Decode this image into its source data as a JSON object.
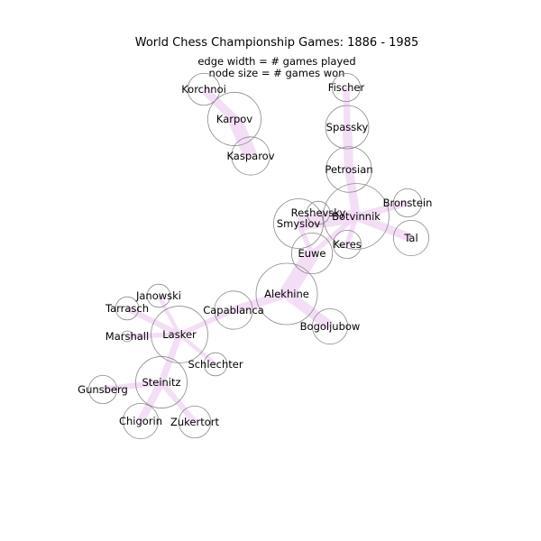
{
  "title": "World Chess Championship Games: 1886 - 1985",
  "subtitle_lines": [
    "edge width = # games played",
    "node size = # games won"
  ],
  "colors": {
    "edge": "#f2d8f5",
    "node_stroke": "#8a8a8a",
    "node_fill": "none",
    "text": "#000000"
  },
  "nodes": [
    {
      "name": "Korchnoi",
      "won": 3
    },
    {
      "name": "Karpov",
      "won": 12
    },
    {
      "name": "Kasparov",
      "won": 5
    },
    {
      "name": "Fischer",
      "won": 2
    },
    {
      "name": "Spassky",
      "won": 7
    },
    {
      "name": "Petrosian",
      "won": 8
    },
    {
      "name": "Bronstein",
      "won": 2
    },
    {
      "name": "Botvinnik",
      "won": 20
    },
    {
      "name": "Reshevsky",
      "won": 1
    },
    {
      "name": "Smyslov",
      "won": 10
    },
    {
      "name": "Tal",
      "won": 4
    },
    {
      "name": "Keres",
      "won": 2
    },
    {
      "name": "Euwe",
      "won": 6
    },
    {
      "name": "Alekhine",
      "won": 17
    },
    {
      "name": "Janowski",
      "won": 1
    },
    {
      "name": "Capablanca",
      "won": 5
    },
    {
      "name": "Tarrasch",
      "won": 1
    },
    {
      "name": "Lasker",
      "won": 14
    },
    {
      "name": "Marshall",
      "won": 0
    },
    {
      "name": "Bogoljubow",
      "won": 4
    },
    {
      "name": "Schlechter",
      "won": 1
    },
    {
      "name": "Steinitz",
      "won": 11
    },
    {
      "name": "Gunsberg",
      "won": 2
    },
    {
      "name": "Chigorin",
      "won": 4
    },
    {
      "name": "Zukertort",
      "won": 3
    }
  ],
  "edges": [
    {
      "source": "Korchnoi",
      "target": "Karpov",
      "games": 8
    },
    {
      "source": "Karpov",
      "target": "Kasparov",
      "games": 14
    },
    {
      "source": "Fischer",
      "target": "Spassky",
      "games": 6
    },
    {
      "source": "Spassky",
      "target": "Petrosian",
      "games": 9
    },
    {
      "source": "Petrosian",
      "target": "Botvinnik",
      "games": 8
    },
    {
      "source": "Botvinnik",
      "target": "Bronstein",
      "games": 6
    },
    {
      "source": "Botvinnik",
      "target": "Tal",
      "games": 8
    },
    {
      "source": "Botvinnik",
      "target": "Smyslov",
      "games": 14
    },
    {
      "source": "Botvinnik",
      "target": "Reshevsky",
      "games": 4
    },
    {
      "source": "Botvinnik",
      "target": "Keres",
      "games": 4
    },
    {
      "source": "Botvinnik",
      "target": "Euwe",
      "games": 4
    },
    {
      "source": "Smyslov",
      "target": "Euwe",
      "games": 4
    },
    {
      "source": "Euwe",
      "target": "Alekhine",
      "games": 16
    },
    {
      "source": "Alekhine",
      "target": "Capablanca",
      "games": 8
    },
    {
      "source": "Alekhine",
      "target": "Bogoljubow",
      "games": 10
    },
    {
      "source": "Capablanca",
      "target": "Lasker",
      "games": 4
    },
    {
      "source": "Lasker",
      "target": "Janowski",
      "games": 3
    },
    {
      "source": "Lasker",
      "target": "Tarrasch",
      "games": 5
    },
    {
      "source": "Lasker",
      "target": "Marshall",
      "games": 4
    },
    {
      "source": "Lasker",
      "target": "Schlechter",
      "games": 3
    },
    {
      "source": "Lasker",
      "target": "Steinitz",
      "games": 6
    },
    {
      "source": "Steinitz",
      "target": "Gunsberg",
      "games": 5
    },
    {
      "source": "Steinitz",
      "target": "Chigorin",
      "games": 7
    },
    {
      "source": "Steinitz",
      "target": "Zukertort",
      "games": 5
    }
  ]
}
